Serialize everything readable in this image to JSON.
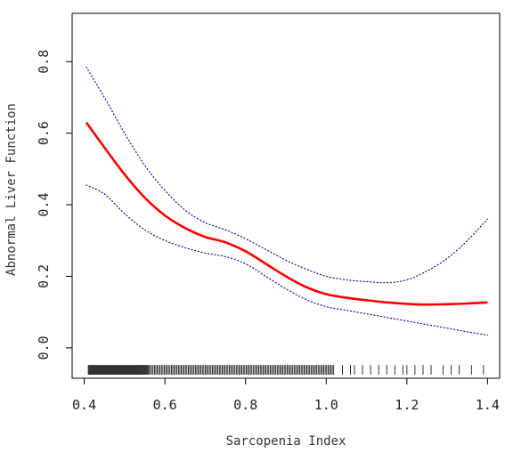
{
  "chart_data": {
    "type": "line",
    "title": "",
    "xlabel": "Sarcopenia Index",
    "ylabel": "Abnormal Liver Function",
    "xlim": [
      0.37,
      1.43
    ],
    "ylim": [
      -0.085,
      0.935
    ],
    "x_ticks": [
      0.4,
      0.6,
      0.8,
      1.0,
      1.2,
      1.4
    ],
    "x_tick_labels": [
      "0.4",
      "0.6",
      "0.8",
      "1.0",
      "1.2",
      "1.4"
    ],
    "y_ticks": [
      0.0,
      0.2,
      0.4,
      0.6,
      0.8
    ],
    "y_tick_labels": [
      "0.0",
      "0.2",
      "0.4",
      "0.6",
      "0.8"
    ],
    "grid": false,
    "legend": "none",
    "x": [
      0.405,
      0.45,
      0.5,
      0.55,
      0.6,
      0.65,
      0.7,
      0.75,
      0.8,
      0.85,
      0.9,
      0.95,
      1.0,
      1.05,
      1.1,
      1.15,
      1.2,
      1.25,
      1.3,
      1.35,
      1.4
    ],
    "series": [
      {
        "role": "estimate",
        "color": "#ff0000",
        "style": "solid",
        "values": [
          0.63,
          0.56,
          0.485,
          0.42,
          0.37,
          0.335,
          0.31,
          0.295,
          0.27,
          0.235,
          0.2,
          0.17,
          0.15,
          0.14,
          0.133,
          0.127,
          0.123,
          0.121,
          0.122,
          0.124,
          0.127
        ]
      },
      {
        "role": "upper_bound",
        "color": "#0000aa",
        "style": "dotted",
        "values": [
          0.785,
          0.7,
          0.6,
          0.51,
          0.44,
          0.385,
          0.35,
          0.33,
          0.305,
          0.275,
          0.245,
          0.22,
          0.2,
          0.19,
          0.185,
          0.182,
          0.19,
          0.215,
          0.25,
          0.3,
          0.36
        ]
      },
      {
        "role": "lower_bound",
        "color": "#0000aa",
        "style": "dotted",
        "values": [
          0.455,
          0.43,
          0.375,
          0.33,
          0.3,
          0.28,
          0.265,
          0.255,
          0.235,
          0.2,
          0.165,
          0.135,
          0.115,
          0.105,
          0.095,
          0.085,
          0.075,
          0.065,
          0.055,
          0.045,
          0.035
        ]
      }
    ],
    "rug": {
      "color": "#000000",
      "dense_ranges": [
        [
          0.41,
          0.56
        ],
        [
          0.56,
          1.02
        ]
      ],
      "sparse_values": [
        1.04,
        1.06,
        1.07,
        1.09,
        1.11,
        1.13,
        1.15,
        1.17,
        1.19,
        1.2,
        1.22,
        1.24,
        1.26,
        1.29,
        1.31,
        1.33,
        1.36,
        1.39
      ]
    }
  }
}
